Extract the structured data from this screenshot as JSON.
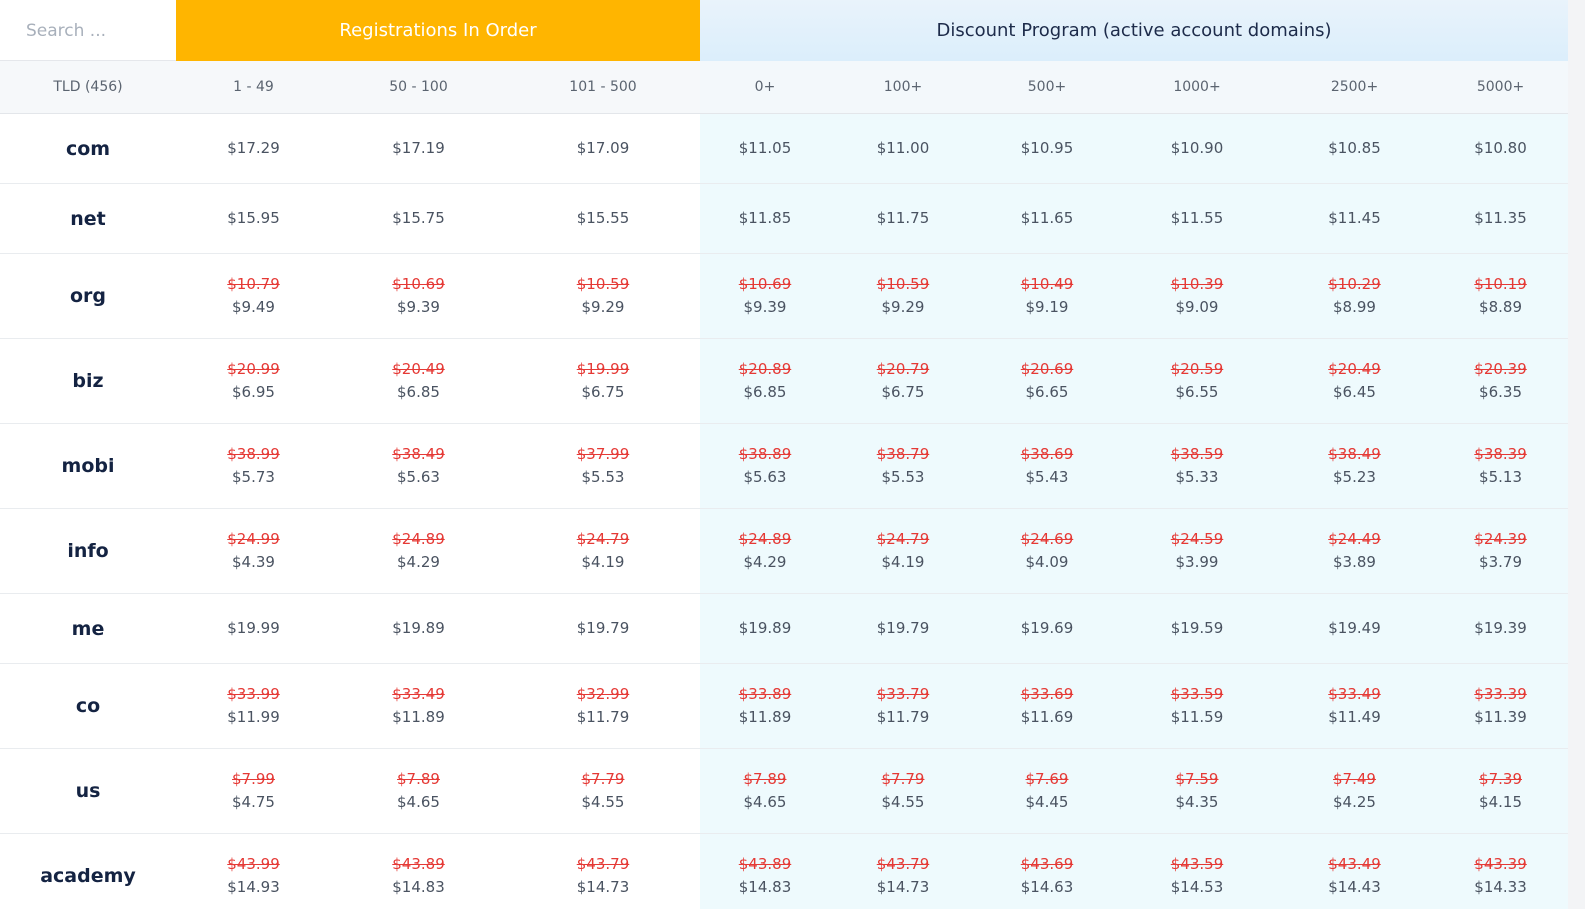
{
  "search": {
    "placeholder": "Search ..."
  },
  "groups": {
    "registrations": "Registrations In Order",
    "discount": "Discount Program (active account domains)"
  },
  "tiers": {
    "tld": "TLD (456)",
    "reg": [
      "1 - 49",
      "50 - 100",
      "101 - 500"
    ],
    "disc": [
      "0+",
      "100+",
      "500+",
      "1000+",
      "2500+",
      "5000+"
    ]
  },
  "rows": [
    {
      "tld": "com",
      "prices": [
        {
          "new": "$17.29"
        },
        {
          "new": "$17.19"
        },
        {
          "new": "$17.09"
        },
        {
          "new": "$11.05"
        },
        {
          "new": "$11.00"
        },
        {
          "new": "$10.95"
        },
        {
          "new": "$10.90"
        },
        {
          "new": "$10.85"
        },
        {
          "new": "$10.80"
        }
      ]
    },
    {
      "tld": "net",
      "prices": [
        {
          "new": "$15.95"
        },
        {
          "new": "$15.75"
        },
        {
          "new": "$15.55"
        },
        {
          "new": "$11.85"
        },
        {
          "new": "$11.75"
        },
        {
          "new": "$11.65"
        },
        {
          "new": "$11.55"
        },
        {
          "new": "$11.45"
        },
        {
          "new": "$11.35"
        }
      ]
    },
    {
      "tld": "org",
      "prices": [
        {
          "old": "$10.79",
          "new": "$9.49"
        },
        {
          "old": "$10.69",
          "new": "$9.39"
        },
        {
          "old": "$10.59",
          "new": "$9.29"
        },
        {
          "old": "$10.69",
          "new": "$9.39"
        },
        {
          "old": "$10.59",
          "new": "$9.29"
        },
        {
          "old": "$10.49",
          "new": "$9.19"
        },
        {
          "old": "$10.39",
          "new": "$9.09"
        },
        {
          "old": "$10.29",
          "new": "$8.99"
        },
        {
          "old": "$10.19",
          "new": "$8.89"
        }
      ]
    },
    {
      "tld": "biz",
      "prices": [
        {
          "old": "$20.99",
          "new": "$6.95"
        },
        {
          "old": "$20.49",
          "new": "$6.85"
        },
        {
          "old": "$19.99",
          "new": "$6.75"
        },
        {
          "old": "$20.89",
          "new": "$6.85"
        },
        {
          "old": "$20.79",
          "new": "$6.75"
        },
        {
          "old": "$20.69",
          "new": "$6.65"
        },
        {
          "old": "$20.59",
          "new": "$6.55"
        },
        {
          "old": "$20.49",
          "new": "$6.45"
        },
        {
          "old": "$20.39",
          "new": "$6.35"
        }
      ]
    },
    {
      "tld": "mobi",
      "prices": [
        {
          "old": "$38.99",
          "new": "$5.73"
        },
        {
          "old": "$38.49",
          "new": "$5.63"
        },
        {
          "old": "$37.99",
          "new": "$5.53"
        },
        {
          "old": "$38.89",
          "new": "$5.63"
        },
        {
          "old": "$38.79",
          "new": "$5.53"
        },
        {
          "old": "$38.69",
          "new": "$5.43"
        },
        {
          "old": "$38.59",
          "new": "$5.33"
        },
        {
          "old": "$38.49",
          "new": "$5.23"
        },
        {
          "old": "$38.39",
          "new": "$5.13"
        }
      ]
    },
    {
      "tld": "info",
      "prices": [
        {
          "old": "$24.99",
          "new": "$4.39"
        },
        {
          "old": "$24.89",
          "new": "$4.29"
        },
        {
          "old": "$24.79",
          "new": "$4.19"
        },
        {
          "old": "$24.89",
          "new": "$4.29"
        },
        {
          "old": "$24.79",
          "new": "$4.19"
        },
        {
          "old": "$24.69",
          "new": "$4.09"
        },
        {
          "old": "$24.59",
          "new": "$3.99"
        },
        {
          "old": "$24.49",
          "new": "$3.89"
        },
        {
          "old": "$24.39",
          "new": "$3.79"
        }
      ]
    },
    {
      "tld": "me",
      "prices": [
        {
          "new": "$19.99"
        },
        {
          "new": "$19.89"
        },
        {
          "new": "$19.79"
        },
        {
          "new": "$19.89"
        },
        {
          "new": "$19.79"
        },
        {
          "new": "$19.69"
        },
        {
          "new": "$19.59"
        },
        {
          "new": "$19.49"
        },
        {
          "new": "$19.39"
        }
      ]
    },
    {
      "tld": "co",
      "prices": [
        {
          "old": "$33.99",
          "new": "$11.99"
        },
        {
          "old": "$33.49",
          "new": "$11.89"
        },
        {
          "old": "$32.99",
          "new": "$11.79"
        },
        {
          "old": "$33.89",
          "new": "$11.89"
        },
        {
          "old": "$33.79",
          "new": "$11.79"
        },
        {
          "old": "$33.69",
          "new": "$11.69"
        },
        {
          "old": "$33.59",
          "new": "$11.59"
        },
        {
          "old": "$33.49",
          "new": "$11.49"
        },
        {
          "old": "$33.39",
          "new": "$11.39"
        }
      ]
    },
    {
      "tld": "us",
      "prices": [
        {
          "old": "$7.99",
          "new": "$4.75"
        },
        {
          "old": "$7.89",
          "new": "$4.65"
        },
        {
          "old": "$7.79",
          "new": "$4.55"
        },
        {
          "old": "$7.89",
          "new": "$4.65"
        },
        {
          "old": "$7.79",
          "new": "$4.55"
        },
        {
          "old": "$7.69",
          "new": "$4.45"
        },
        {
          "old": "$7.59",
          "new": "$4.35"
        },
        {
          "old": "$7.49",
          "new": "$4.25"
        },
        {
          "old": "$7.39",
          "new": "$4.15"
        }
      ]
    },
    {
      "tld": "academy",
      "prices": [
        {
          "old": "$43.99",
          "new": "$14.93"
        },
        {
          "old": "$43.89",
          "new": "$14.83"
        },
        {
          "old": "$43.79",
          "new": "$14.73"
        },
        {
          "old": "$43.89",
          "new": "$14.83"
        },
        {
          "old": "$43.79",
          "new": "$14.73"
        },
        {
          "old": "$43.69",
          "new": "$14.63"
        },
        {
          "old": "$43.59",
          "new": "$14.53"
        },
        {
          "old": "$43.49",
          "new": "$14.43"
        },
        {
          "old": "$43.39",
          "new": "$14.33"
        }
      ]
    }
  ],
  "colors": {
    "accent": "#ffb500",
    "strike": "#e53935",
    "discount_bg": "#eefafd",
    "tld_text": "#142342"
  }
}
